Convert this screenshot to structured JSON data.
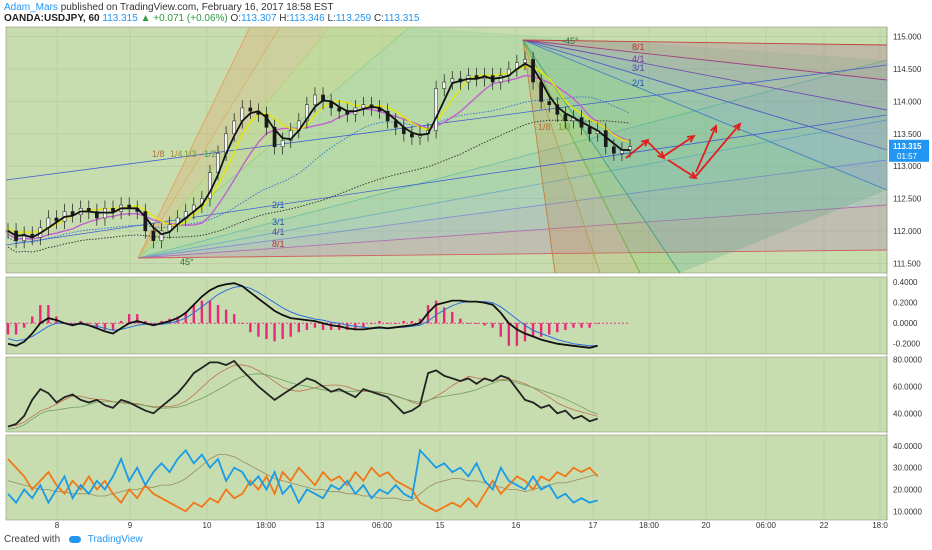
{
  "header": {
    "author": "Adam_Mars",
    "published_text": "published on TradingView.com, February 16, 2017 18:58 EST",
    "symbol": "OANDA:USDJPY, 60",
    "last": "113.315",
    "change": "+0.071 (+0.06%)",
    "ohlc_labels": [
      "O:",
      "H:",
      "L:",
      "C:"
    ],
    "ohlc_values": [
      "113.307",
      "113.346",
      "113.259",
      "113.315"
    ]
  },
  "footer": {
    "created_with": "Created with",
    "brand": "TradingView"
  },
  "colors": {
    "panel_bg": "#c7ddb0",
    "candle": "#1a1a1a",
    "price_line": "#111111",
    "yellow_ma": "#e6e600",
    "magenta_ma": "#c060d0",
    "hist": "#e8287a",
    "blue": "#2a6fdb",
    "orange": "#f07818",
    "cyan": "#1a9be8",
    "arrow": "#e02020",
    "price_tag": "#2196f3"
  },
  "chart_data": [
    {
      "type": "line",
      "panel": "price",
      "y_ticks": [
        "115.000",
        "114.500",
        "114.000",
        "113.500",
        "113.000",
        "112.500",
        "112.000",
        "111.500"
      ],
      "ylim": [
        111.35,
        115.15
      ],
      "x_ticks": [
        "8",
        "9",
        "10",
        "18:00",
        "13",
        "06:00",
        "15",
        "16",
        "17",
        "18:00",
        "20",
        "06:00",
        "22",
        "18:0"
      ],
      "last_price_label": "113.315",
      "countdown_label": "01:57",
      "gann_labels_left": [
        "1/8",
        "1/4",
        "1/3",
        "1/2",
        "2/1",
        "3/1",
        "4/1",
        "8/1",
        "45°"
      ],
      "gann_labels_right": [
        "-45°",
        "8/1",
        "4/1",
        "3/1",
        "2/1",
        "1/8",
        "1/3"
      ],
      "series": [
        {
          "name": "USDJPY",
          "values": [
            112.0,
            111.85,
            111.95,
            111.9,
            112.05,
            112.2,
            112.15,
            112.3,
            112.25,
            112.35,
            112.3,
            112.2,
            112.35,
            112.3,
            112.4,
            112.35,
            112.3,
            112.0,
            111.85,
            112.0,
            112.1,
            112.2,
            112.3,
            112.4,
            112.5,
            112.9,
            113.2,
            113.5,
            113.7,
            113.9,
            113.85,
            113.8,
            113.6,
            113.3,
            113.4,
            113.55,
            113.7,
            113.95,
            114.1,
            114.0,
            113.9,
            113.85,
            113.8,
            113.9,
            113.95,
            113.9,
            113.85,
            113.7,
            113.6,
            113.5,
            113.45,
            113.5,
            113.55,
            114.2,
            114.3,
            114.35,
            114.3,
            114.4,
            114.35,
            114.4,
            114.3,
            114.4,
            114.5,
            114.6,
            114.65,
            114.3,
            114.0,
            113.95,
            113.8,
            113.7,
            113.75,
            113.6,
            113.5,
            113.55,
            113.3,
            113.2,
            113.25,
            113.3
          ]
        }
      ]
    },
    {
      "type": "line",
      "panel": "macd",
      "y_ticks": [
        "0.4000",
        "0.2000",
        "0.0000",
        "-0.2000"
      ],
      "ylim": [
        -0.3,
        0.45
      ],
      "series": [
        {
          "name": "MACD",
          "values": [
            -0.2,
            -0.22,
            -0.18,
            -0.1,
            0.0,
            0.05,
            0.03,
            0.0,
            -0.02,
            0.0,
            -0.02,
            -0.05,
            -0.08,
            -0.1,
            -0.05,
            0.0,
            0.02,
            0.0,
            -0.02,
            0.0,
            0.02,
            0.05,
            0.1,
            0.18,
            0.26,
            0.32,
            0.36,
            0.38,
            0.39,
            0.36,
            0.3,
            0.24,
            0.18,
            0.12,
            0.08,
            0.05,
            0.04,
            0.03,
            0.02,
            0.0,
            -0.02,
            -0.03,
            -0.05,
            -0.06,
            -0.06,
            -0.05,
            -0.04,
            -0.05,
            -0.04,
            -0.03,
            -0.02,
            0.0,
            0.1,
            0.18,
            0.2,
            0.22,
            0.22,
            0.21,
            0.21,
            0.2,
            0.18,
            0.1,
            0.0,
            -0.06,
            -0.1,
            -0.13,
            -0.16,
            -0.18,
            -0.2,
            -0.21,
            -0.22,
            -0.23,
            -0.24,
            -0.22
          ]
        },
        {
          "name": "Signal",
          "values": [
            -0.15,
            -0.17,
            -0.16,
            -0.13,
            -0.08,
            -0.03,
            0.0,
            0.0,
            -0.01,
            -0.01,
            -0.02,
            -0.03,
            -0.05,
            -0.07,
            -0.06,
            -0.04,
            -0.02,
            -0.01,
            -0.01,
            -0.01,
            0.0,
            0.02,
            0.05,
            0.1,
            0.16,
            0.22,
            0.28,
            0.32,
            0.35,
            0.36,
            0.34,
            0.3,
            0.25,
            0.2,
            0.15,
            0.11,
            0.08,
            0.06,
            0.04,
            0.03,
            0.01,
            0.0,
            -0.02,
            -0.03,
            -0.04,
            -0.05,
            -0.05,
            -0.05,
            -0.04,
            -0.04,
            -0.03,
            -0.02,
            0.02,
            0.08,
            0.13,
            0.17,
            0.2,
            0.21,
            0.21,
            0.21,
            0.2,
            0.16,
            0.1,
            0.04,
            -0.02,
            -0.07,
            -0.1,
            -0.13,
            -0.16,
            -0.18,
            -0.2,
            -0.21,
            -0.22,
            -0.22
          ]
        }
      ]
    },
    {
      "type": "line",
      "panel": "rsi",
      "y_ticks": [
        "80.0000",
        "60.0000",
        "40.0000"
      ],
      "ylim": [
        26,
        82
      ],
      "series": [
        {
          "name": "RSI",
          "values": [
            30,
            32,
            38,
            50,
            58,
            55,
            48,
            52,
            54,
            50,
            48,
            50,
            46,
            44,
            50,
            48,
            45,
            42,
            40,
            45,
            50,
            55,
            62,
            70,
            74,
            78,
            78,
            76,
            79,
            72,
            66,
            60,
            55,
            50,
            54,
            58,
            62,
            66,
            64,
            60,
            56,
            58,
            55,
            52,
            58,
            56,
            54,
            52,
            46,
            40,
            42,
            46,
            70,
            72,
            68,
            66,
            64,
            66,
            62,
            66,
            64,
            68,
            66,
            58,
            50,
            48,
            44,
            46,
            40,
            42,
            36,
            38,
            34,
            36
          ]
        }
      ]
    },
    {
      "type": "line",
      "panel": "dmi",
      "y_ticks": [
        "40.0000",
        "30.0000",
        "20.0000",
        "10.0000"
      ],
      "ylim": [
        6,
        45
      ],
      "series": [
        {
          "name": "+DI",
          "values": [
            18,
            14,
            20,
            16,
            22,
            14,
            20,
            26,
            16,
            22,
            18,
            24,
            20,
            26,
            34,
            24,
            30,
            22,
            28,
            32,
            28,
            34,
            38,
            32,
            36,
            30,
            34,
            24,
            30,
            28,
            22,
            26,
            20,
            28,
            18,
            22,
            14,
            20,
            18,
            16,
            22,
            20,
            24,
            18,
            22,
            16,
            20,
            18,
            22,
            18,
            16,
            38,
            34,
            30,
            32,
            28,
            30,
            26,
            32,
            24,
            20,
            30,
            24,
            22,
            20,
            26,
            20,
            22,
            16,
            18,
            14,
            16,
            14,
            15
          ]
        },
        {
          "name": "-DI",
          "values": [
            34,
            30,
            26,
            20,
            24,
            28,
            22,
            18,
            24,
            20,
            26,
            20,
            24,
            18,
            14,
            20,
            16,
            22,
            18,
            16,
            14,
            12,
            10,
            14,
            12,
            16,
            14,
            20,
            16,
            18,
            24,
            20,
            26,
            18,
            28,
            24,
            30,
            26,
            22,
            28,
            24,
            26,
            22,
            28,
            24,
            30,
            26,
            28,
            24,
            22,
            20,
            14,
            12,
            10,
            12,
            14,
            12,
            16,
            12,
            18,
            24,
            18,
            22,
            26,
            24,
            20,
            26,
            24,
            28,
            26,
            30,
            28,
            30,
            26
          ]
        },
        {
          "name": "ADX",
          "values": [
            24,
            23,
            22,
            21,
            20,
            20,
            19,
            19,
            18,
            18,
            18,
            17,
            17,
            18,
            19,
            20,
            20,
            21,
            21,
            22,
            22,
            23,
            25,
            28,
            31,
            34,
            36,
            36,
            35,
            33,
            31,
            29,
            27,
            25,
            24,
            23,
            22,
            21,
            20,
            20,
            19,
            19,
            18,
            18,
            17,
            17,
            16,
            16,
            16,
            15,
            15,
            18,
            21,
            23,
            24,
            25,
            25,
            24,
            24,
            23,
            22,
            21,
            20,
            20,
            19,
            20,
            21,
            22,
            23,
            23,
            24,
            25,
            26,
            27
          ]
        }
      ]
    }
  ]
}
